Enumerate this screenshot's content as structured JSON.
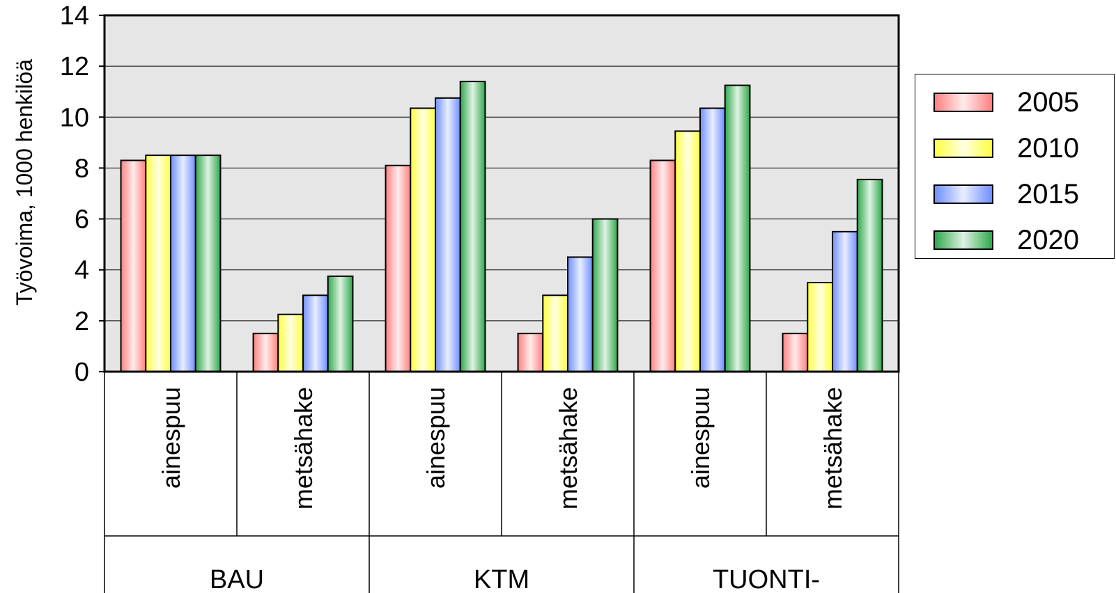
{
  "chart_data": {
    "type": "bar",
    "ylabel": "Työvoima, 1000  henkilöä",
    "ylim": [
      0,
      14
    ],
    "yticks": [
      0,
      2,
      4,
      6,
      8,
      10,
      12,
      14
    ],
    "grid": true,
    "legend_position": "right",
    "groups": [
      {
        "label": "BAU",
        "categories": [
          "ainespuu",
          "metsähake"
        ]
      },
      {
        "label": "KTM",
        "categories": [
          "ainespuu",
          "metsähake"
        ]
      },
      {
        "label": "TUONTI-",
        "categories": [
          "ainespuu",
          "metsähake"
        ]
      }
    ],
    "categories": [
      "BAU ainespuu",
      "BAU metsähake",
      "KTM ainespuu",
      "KTM metsähake",
      "TUONTI- ainespuu",
      "TUONTI- metsähake"
    ],
    "series": [
      {
        "name": "2005",
        "color": "#ff8080",
        "values": [
          8.3,
          1.5,
          8.1,
          1.5,
          8.3,
          1.5
        ]
      },
      {
        "name": "2010",
        "color": "#ffff40",
        "values": [
          8.5,
          2.25,
          10.35,
          3.0,
          9.45,
          3.5
        ]
      },
      {
        "name": "2015",
        "color": "#6f8fff",
        "values": [
          8.5,
          3.0,
          10.75,
          4.5,
          10.35,
          5.5
        ]
      },
      {
        "name": "2020",
        "color": "#2ea84a",
        "values": [
          8.5,
          3.75,
          11.4,
          6.0,
          11.25,
          7.55
        ]
      }
    ]
  }
}
